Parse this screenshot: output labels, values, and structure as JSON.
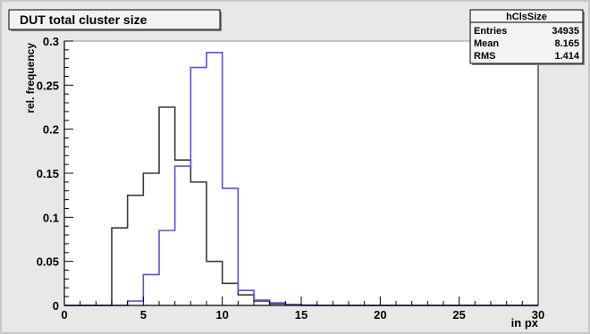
{
  "chart_data": {
    "type": "histogram",
    "title": "DUT total cluster size",
    "xlabel": "in px",
    "ylabel": "rel. frequency",
    "xlim": [
      0,
      30
    ],
    "ylim": [
      0,
      0.3
    ],
    "x_ticks": [
      0,
      5,
      10,
      15,
      20,
      25,
      30
    ],
    "y_ticks": [
      0,
      0.05,
      0.1,
      0.15,
      0.2,
      0.25,
      0.3
    ],
    "grid": false,
    "bin_width": 1,
    "series": [
      {
        "color": "#3a3a3a",
        "bin_edges_start": 0,
        "values": [
          0,
          0,
          0,
          0.088,
          0.125,
          0.15,
          0.225,
          0.165,
          0.14,
          0.05,
          0.025,
          0.012,
          0.005,
          0.002,
          0.001,
          0.0,
          0,
          0,
          0,
          0,
          0,
          0,
          0,
          0,
          0,
          0,
          0,
          0,
          0,
          0
        ]
      },
      {
        "color": "#5555dd",
        "bin_edges_start": 0,
        "values": [
          0,
          0,
          0,
          0,
          0.005,
          0.035,
          0.085,
          0.158,
          0.27,
          0.287,
          0.133,
          0.017,
          0.006,
          0.003,
          0.001,
          0.0005,
          0,
          0,
          0,
          0,
          0,
          0,
          0,
          0,
          0,
          0,
          0,
          0,
          0,
          0
        ]
      }
    ],
    "stats_box": {
      "name": "hClsSize",
      "rows": [
        {
          "label": "Entries",
          "value": "34935"
        },
        {
          "label": "Mean",
          "value": "8.165"
        },
        {
          "label": "RMS",
          "value": "1.414"
        }
      ]
    },
    "colors": {
      "canvas_bg": "#e9e8e6",
      "frame_fill": "#ffffff",
      "axis": "#000000"
    }
  }
}
